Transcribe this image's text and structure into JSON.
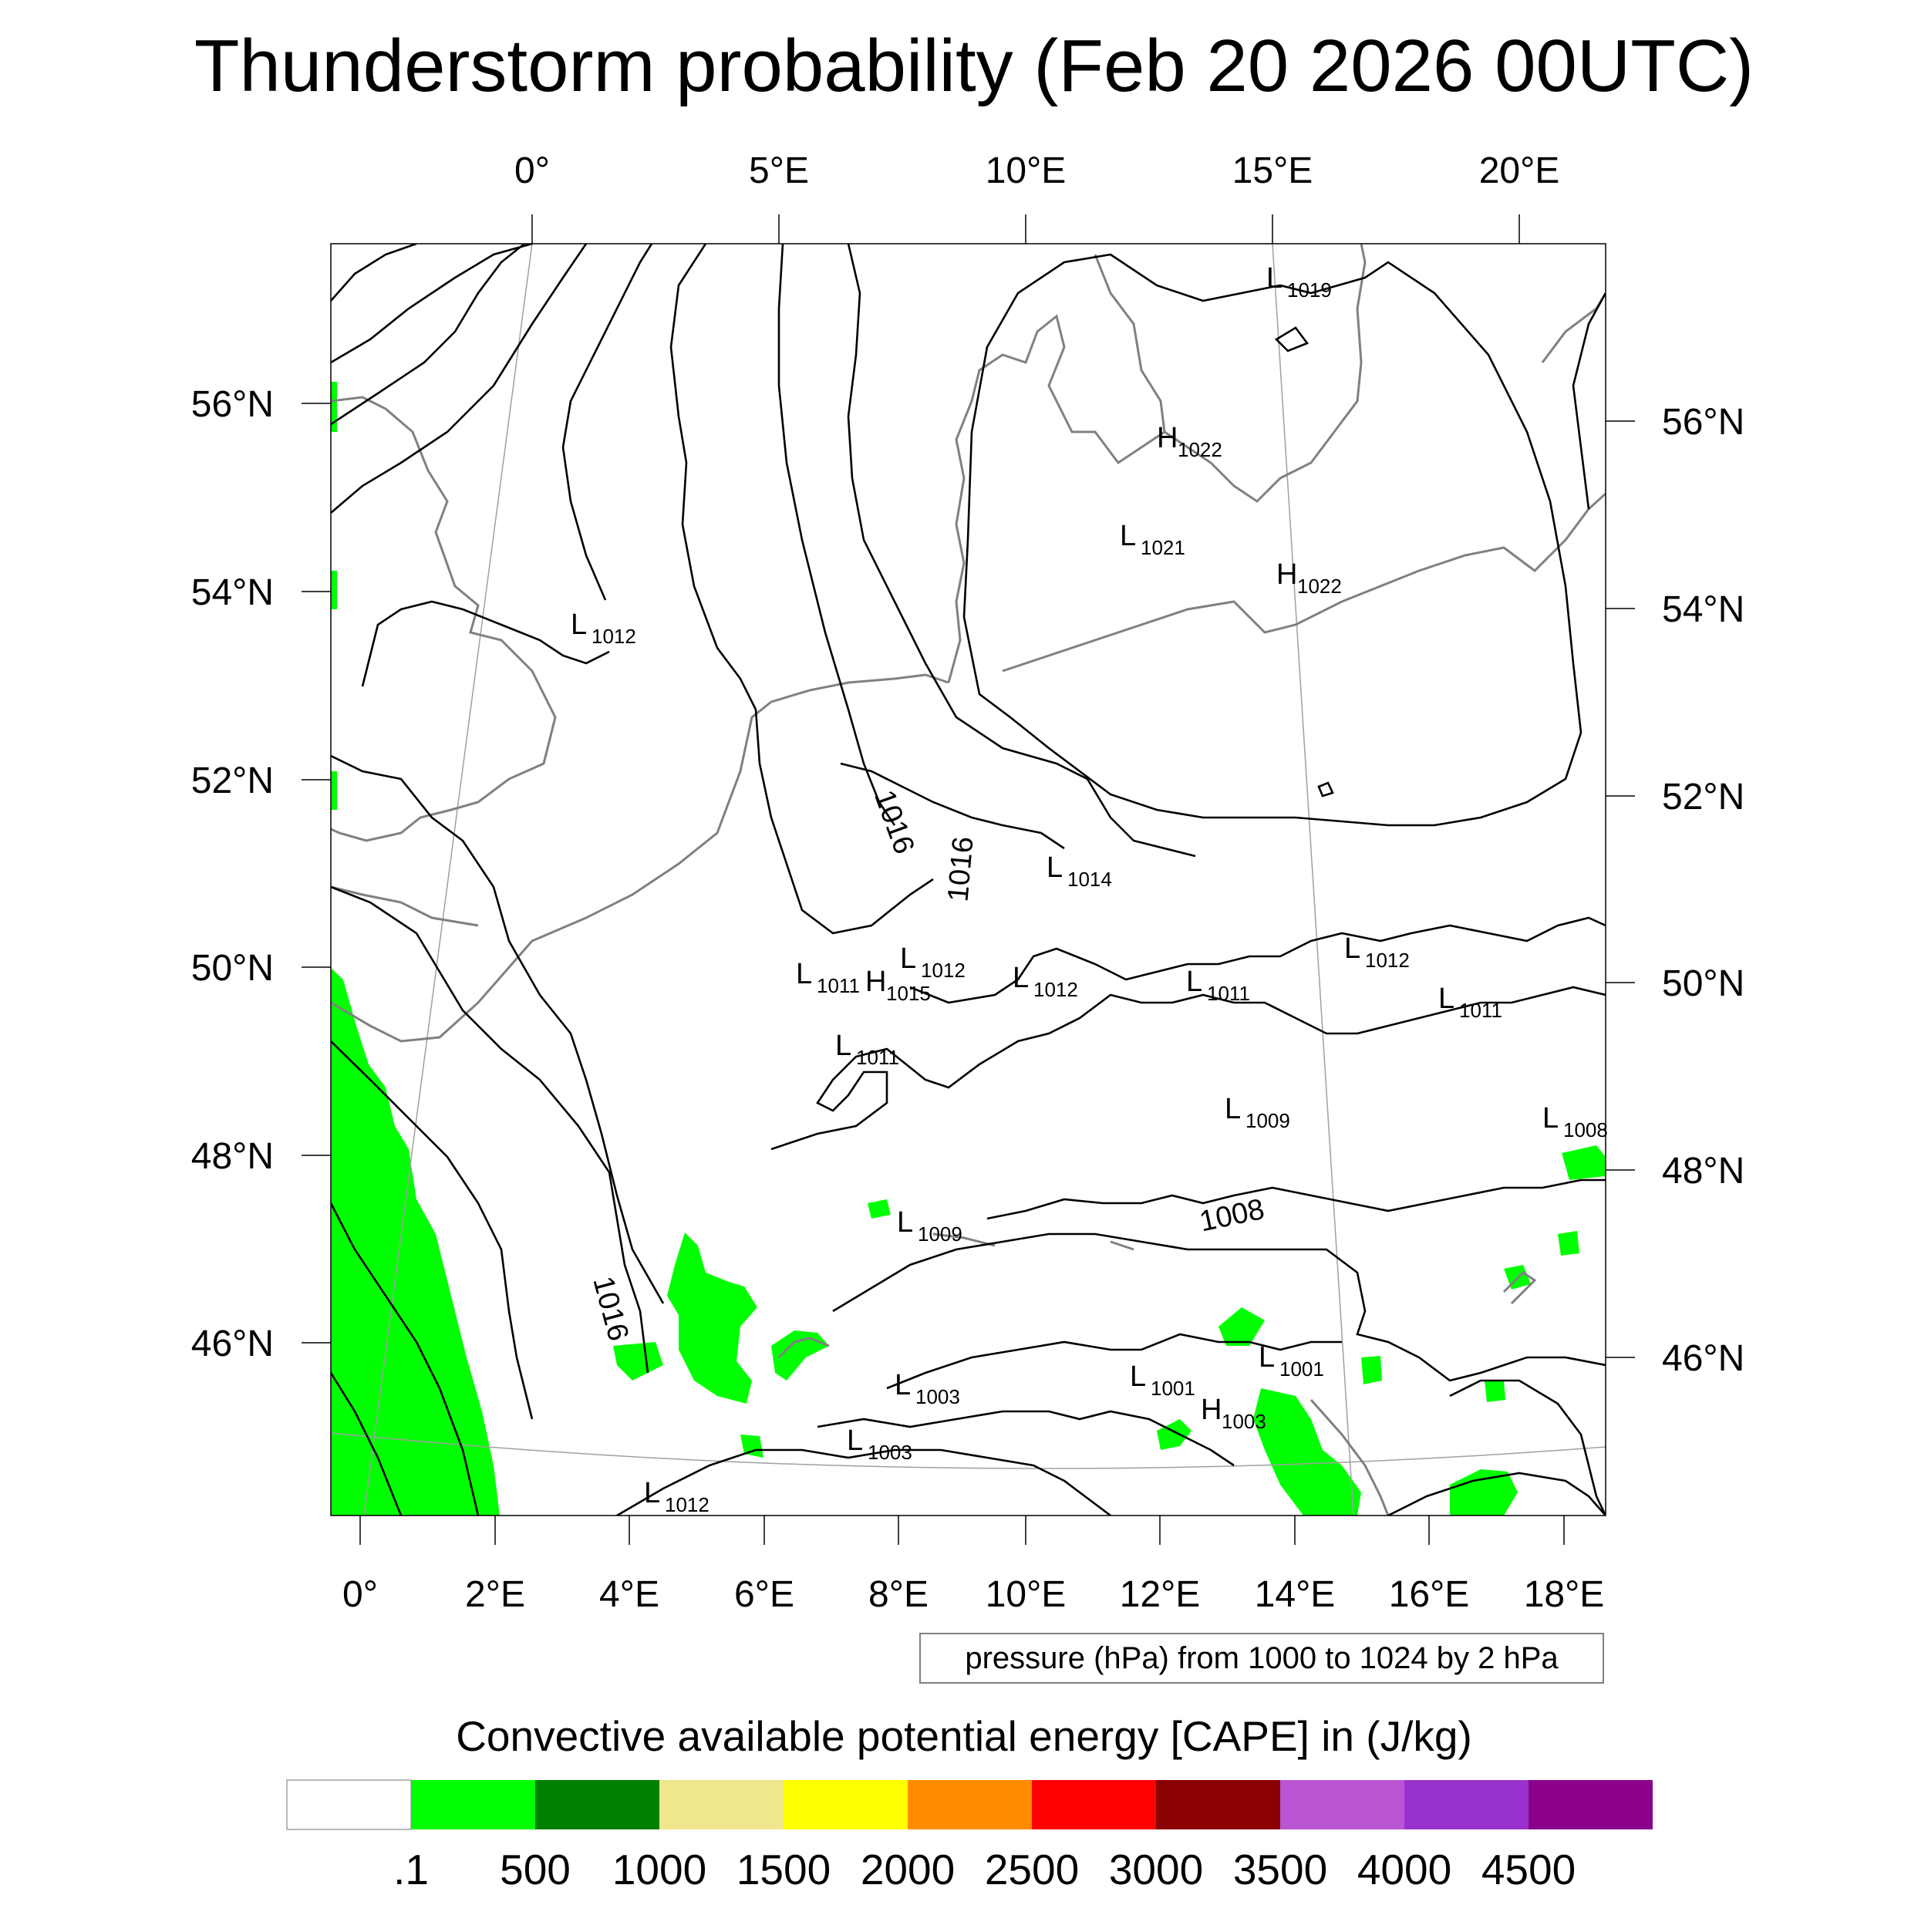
{
  "title": "Thunderstorm probability (Feb 20 2026 00UTC)",
  "top_axis_labels": [
    "0°",
    "5°E",
    "10°E",
    "15°E",
    "20°E"
  ],
  "bottom_axis_labels": [
    "0°",
    "2°E",
    "4°E",
    "6°E",
    "8°E",
    "10°E",
    "12°E",
    "14°E",
    "16°E",
    "18°E"
  ],
  "left_axis_labels": [
    "56°N",
    "54°N",
    "52°N",
    "50°N",
    "48°N",
    "46°N"
  ],
  "right_axis_labels": [
    "56°N",
    "54°N",
    "52°N",
    "50°N",
    "48°N",
    "46°N"
  ],
  "pressure_centers": [
    {
      "letter": "L",
      "value": "1019"
    },
    {
      "letter": "H",
      "value": "1022"
    },
    {
      "letter": "L",
      "value": "1021"
    },
    {
      "letter": "H",
      "value": "1022"
    },
    {
      "letter": "L",
      "value": "1012"
    },
    {
      "letter": "L",
      "value": "1014"
    },
    {
      "letter": "L",
      "value": "1012"
    },
    {
      "letter": "L",
      "value": "1011"
    },
    {
      "letter": "H",
      "value": "1015"
    },
    {
      "letter": "L",
      "value": "1012"
    },
    {
      "letter": "L",
      "value": "1011"
    },
    {
      "letter": "L",
      "value": "1012"
    },
    {
      "letter": "L",
      "value": "1011"
    },
    {
      "letter": "L",
      "value": "1011"
    },
    {
      "letter": "L",
      "value": "1009"
    },
    {
      "letter": "L",
      "value": "1008"
    },
    {
      "letter": "L",
      "value": "1009"
    },
    {
      "letter": "L",
      "value": "1003"
    },
    {
      "letter": "L",
      "value": "1001"
    },
    {
      "letter": "L",
      "value": "1001"
    },
    {
      "letter": "H",
      "value": "1003"
    },
    {
      "letter": "L",
      "value": "1003"
    },
    {
      "letter": "L",
      "value": "1012"
    }
  ],
  "isobar_labels": [
    "1016",
    "1016",
    "1008",
    "1016"
  ],
  "contour_note": "pressure (hPa) from 1000 to 1024 by 2 hPa",
  "colorbar": {
    "title": "Convective available potential energy [CAPE] in (J/kg)",
    "colors": [
      "#ffffff",
      "#00ff00",
      "#008000",
      "#f0e68c",
      "#ffff00",
      "#ff8c00",
      "#ff0000",
      "#8b0000",
      "#ba55d3",
      "#9932cc",
      "#8b008b"
    ],
    "tick_labels": [
      ".1",
      "500",
      "1000",
      "1500",
      "2000",
      "2500",
      "3000",
      "3500",
      "4000",
      "4500"
    ]
  },
  "colors": {
    "cape_fill": "#00ff00",
    "isobar": "#000000",
    "coastline": "#808080",
    "graticule": "#a0a0a0"
  }
}
